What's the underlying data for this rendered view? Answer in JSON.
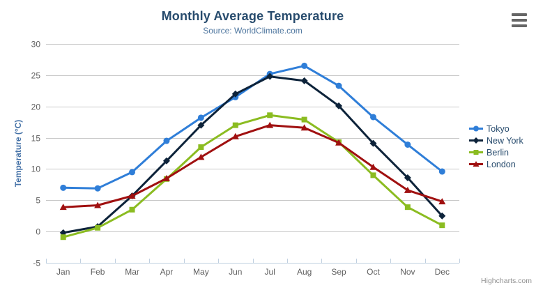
{
  "chart_data": {
    "type": "line",
    "title": "Monthly Average Temperature",
    "subtitle": "Source: WorldClimate.com",
    "categories": [
      "Jan",
      "Feb",
      "Mar",
      "Apr",
      "May",
      "Jun",
      "Jul",
      "Aug",
      "Sep",
      "Oct",
      "Nov",
      "Dec"
    ],
    "series": [
      {
        "name": "Tokyo",
        "symbol": "circle",
        "color": "#2f7ed8",
        "values": [
          7.0,
          6.9,
          9.5,
          14.5,
          18.2,
          21.5,
          25.2,
          26.5,
          23.3,
          18.3,
          13.9,
          9.6
        ]
      },
      {
        "name": "New York",
        "symbol": "diamond",
        "color": "#0d233a",
        "values": [
          -0.2,
          0.8,
          5.7,
          11.3,
          17.0,
          22.0,
          24.8,
          24.1,
          20.1,
          14.1,
          8.6,
          2.5
        ]
      },
      {
        "name": "Berlin",
        "symbol": "square",
        "color": "#8bbc21",
        "values": [
          -0.9,
          0.6,
          3.5,
          8.4,
          13.5,
          17.0,
          18.6,
          17.9,
          14.3,
          9.0,
          3.9,
          1.0
        ]
      },
      {
        "name": "London",
        "symbol": "triangle",
        "color": "#a01010",
        "values": [
          3.9,
          4.2,
          5.7,
          8.5,
          11.9,
          15.2,
          17.0,
          16.6,
          14.2,
          10.3,
          6.6,
          4.8
        ]
      }
    ],
    "xlabel": "",
    "ylabel": "Temperature (°C)",
    "ylim": [
      -5,
      30
    ],
    "yticks": [
      -5,
      0,
      5,
      10,
      15,
      20,
      25,
      30
    ],
    "grid": true,
    "legend_position": "right"
  },
  "credits": {
    "label": "Highcharts.com"
  },
  "colors": {
    "title": "#274b6d",
    "subtitle": "#4d759e",
    "axis_label": "#606060",
    "axis_title": "#4572a7",
    "gridline": "#c8c8c8",
    "axis_line": "#c0d0e0",
    "legend_text": "#274b6d",
    "credit": "#909090",
    "menu_icon": "#666666"
  }
}
